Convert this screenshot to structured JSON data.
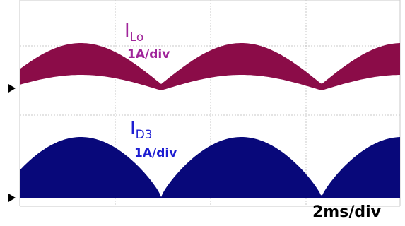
{
  "top_trace": {
    "label": "I",
    "subscript": "Lo",
    "scale": "1A/div"
  },
  "bottom_trace": {
    "label": "I",
    "subscript": "D3",
    "scale": "1A/div"
  },
  "time_scale": "2ms/div"
}
